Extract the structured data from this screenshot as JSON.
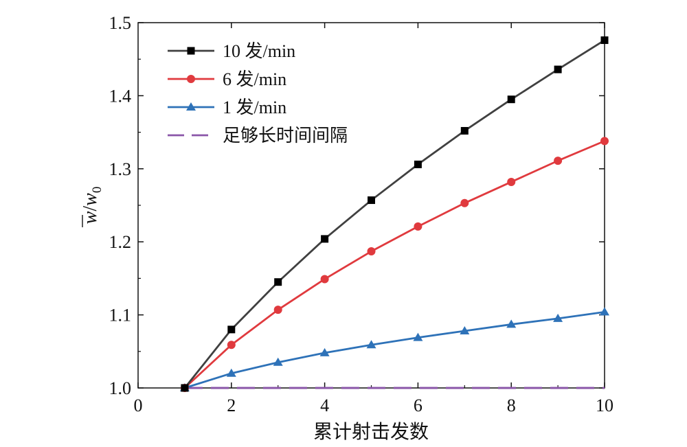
{
  "chart_data": {
    "type": "line",
    "title": "",
    "xlabel": "累计射击发数",
    "ylabel": {
      "main": "w",
      "sub_main": "w",
      "subscript": "0",
      "separator": "/"
    },
    "xlim": [
      0,
      10
    ],
    "ylim": [
      1.0,
      1.5
    ],
    "xticks": [
      0,
      2,
      4,
      6,
      8,
      10
    ],
    "yticks": [
      1.0,
      1.1,
      1.2,
      1.3,
      1.4,
      1.5
    ],
    "xtick_labels": [
      "0",
      "2",
      "4",
      "6",
      "8",
      "10"
    ],
    "ytick_labels": [
      "1.0",
      "1.1",
      "1.2",
      "1.3",
      "1.4",
      "1.5"
    ],
    "grid": false,
    "legend_position": "top-left",
    "x": [
      1,
      2,
      3,
      4,
      5,
      6,
      7,
      8,
      9,
      10
    ],
    "series": [
      {
        "name": "10 发/min",
        "color": "#404040",
        "marker": "square",
        "dash": "solid",
        "values": [
          1.0,
          1.08,
          1.145,
          1.204,
          1.257,
          1.306,
          1.352,
          1.395,
          1.436,
          1.476
        ]
      },
      {
        "name": "6 发/min",
        "color": "#e03a3e",
        "marker": "circle",
        "dash": "solid",
        "values": [
          1.0,
          1.059,
          1.107,
          1.149,
          1.187,
          1.221,
          1.253,
          1.282,
          1.311,
          1.338
        ]
      },
      {
        "name": "1 发/min",
        "color": "#2e72b8",
        "marker": "triangle",
        "dash": "solid",
        "values": [
          1.0,
          1.02,
          1.035,
          1.048,
          1.059,
          1.069,
          1.078,
          1.087,
          1.095,
          1.104
        ]
      },
      {
        "name": "足够长时间间隔",
        "color": "#8a55a8",
        "marker": "none",
        "dash": "dashed",
        "values": [
          1.0,
          1.0,
          1.0,
          1.0,
          1.0,
          1.0,
          1.0,
          1.0,
          1.0,
          1.0
        ]
      }
    ]
  }
}
